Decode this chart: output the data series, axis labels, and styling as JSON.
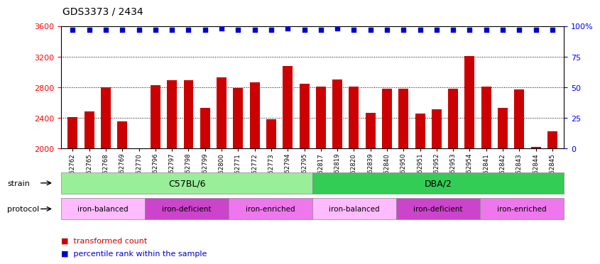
{
  "title": "GDS3373 / 2434",
  "samples": [
    "GSM262762",
    "GSM262765",
    "GSM262768",
    "GSM262769",
    "GSM262770",
    "GSM262796",
    "GSM262797",
    "GSM262798",
    "GSM262799",
    "GSM262800",
    "GSM262771",
    "GSM262772",
    "GSM262773",
    "GSM262794",
    "GSM262795",
    "GSM262817",
    "GSM262819",
    "GSM262820",
    "GSM262839",
    "GSM262840",
    "GSM262950",
    "GSM262951",
    "GSM262952",
    "GSM262953",
    "GSM262954",
    "GSM262841",
    "GSM262842",
    "GSM262843",
    "GSM262844",
    "GSM262845"
  ],
  "bar_values": [
    2410,
    2490,
    2800,
    2355,
    2000,
    2830,
    2890,
    2890,
    2530,
    2930,
    2790,
    2870,
    2380,
    3080,
    2850,
    2810,
    2900,
    2810,
    2465,
    2780,
    2780,
    2460,
    2510,
    2780,
    3210,
    2810,
    2530,
    2770,
    2025,
    2230
  ],
  "percentile_values": [
    97,
    97,
    97,
    97,
    97,
    97,
    97,
    97,
    97,
    98,
    97,
    97,
    97,
    98,
    97,
    97,
    98,
    97,
    97,
    97,
    97,
    97,
    97,
    97,
    97,
    97,
    97,
    97,
    97,
    97
  ],
  "ylim_left": [
    2000,
    3600
  ],
  "ylim_right": [
    0,
    100
  ],
  "yticks_left": [
    2000,
    2400,
    2800,
    3200,
    3600
  ],
  "yticks_right": [
    0,
    25,
    50,
    75,
    100
  ],
  "bar_color": "#cc0000",
  "dot_color": "#0000cc",
  "strain_groups": [
    {
      "label": "C57BL/6",
      "start": 0,
      "end": 15,
      "color": "#99ee99"
    },
    {
      "label": "DBA/2",
      "start": 15,
      "end": 30,
      "color": "#33cc55"
    }
  ],
  "protocol_groups": [
    {
      "label": "iron-balanced",
      "start": 0,
      "end": 5,
      "color": "#ffbbff"
    },
    {
      "label": "iron-deficient",
      "start": 5,
      "end": 10,
      "color": "#cc44cc"
    },
    {
      "label": "iron-enriched",
      "start": 10,
      "end": 15,
      "color": "#ee77ee"
    },
    {
      "label": "iron-balanced",
      "start": 15,
      "end": 20,
      "color": "#ffbbff"
    },
    {
      "label": "iron-deficient",
      "start": 20,
      "end": 25,
      "color": "#cc44cc"
    },
    {
      "label": "iron-enriched",
      "start": 25,
      "end": 30,
      "color": "#ee77ee"
    }
  ]
}
